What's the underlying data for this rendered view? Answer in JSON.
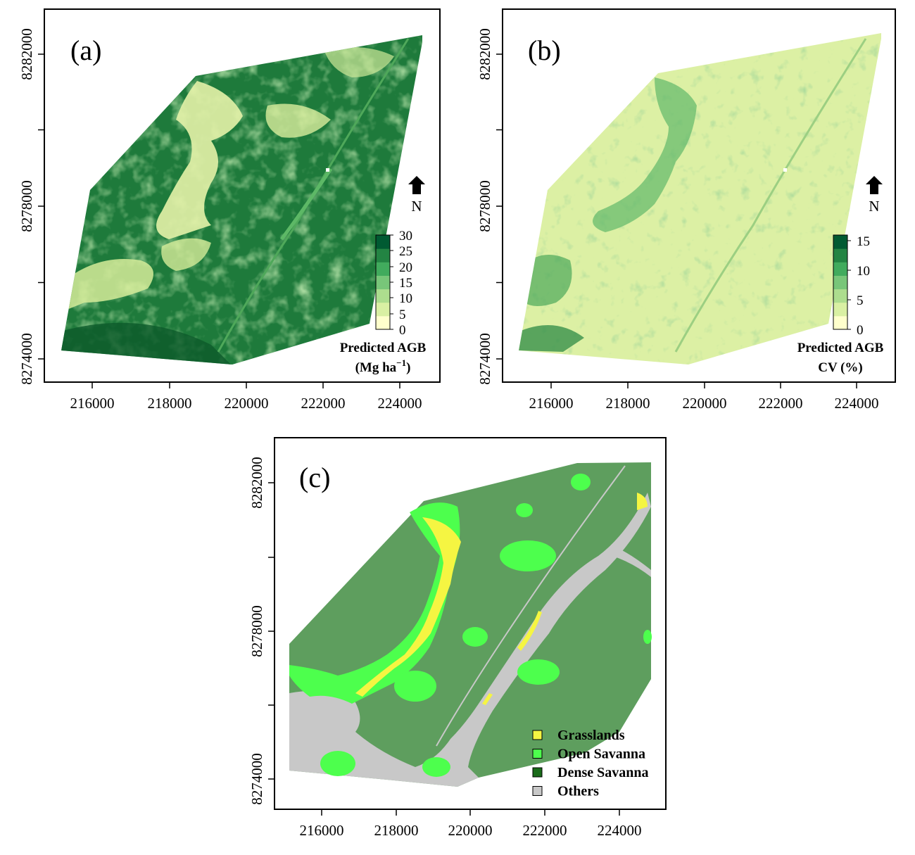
{
  "panels": {
    "a": {
      "label": "(a)",
      "x_ticks": [
        "216000",
        "218000",
        "220000",
        "222000",
        "224000"
      ],
      "y_ticks": [
        "8274000",
        "8278000",
        "8282000"
      ],
      "north": "N",
      "legend": {
        "title_line1": "Predicted AGB",
        "title_line2": "(Mg ha",
        "title_sup": "−1",
        "title_end": ")",
        "ticks": [
          "0",
          "5",
          "10",
          "15",
          "20",
          "25",
          "30"
        ],
        "colors": [
          "#ffffcc",
          "#d9f0a3",
          "#addd8e",
          "#78c679",
          "#41ab5d",
          "#238443",
          "#005a32"
        ]
      }
    },
    "b": {
      "label": "(b)",
      "x_ticks": [
        "216000",
        "218000",
        "220000",
        "222000",
        "224000"
      ],
      "y_ticks": [
        "8274000",
        "8278000",
        "8282000"
      ],
      "north": "N",
      "legend": {
        "title_line1": "Predicted AGB",
        "title_line2": "CV (%)",
        "ticks": [
          "0",
          "5",
          "10",
          "15"
        ],
        "colors": [
          "#ffffcc",
          "#d9f0a3",
          "#addd8e",
          "#78c679",
          "#41ab5d",
          "#238443",
          "#005a32"
        ]
      }
    },
    "c": {
      "label": "(c)",
      "x_ticks": [
        "216000",
        "218000",
        "220000",
        "222000",
        "224000"
      ],
      "y_ticks": [
        "8274000",
        "8278000",
        "8282000"
      ],
      "legend": [
        {
          "label": "Grasslands",
          "color": "#f5f542"
        },
        {
          "label": "Open Savanna",
          "color": "#4dff4d"
        },
        {
          "label": "Dense Savanna",
          "color": "#1a6b1a"
        },
        {
          "label": "Others",
          "color": "#c8c8c8"
        }
      ]
    }
  },
  "colors": {
    "agb_base": "#1f7a3a",
    "cv_base": "#d9efa0",
    "class_base": "#5e9e5e"
  }
}
